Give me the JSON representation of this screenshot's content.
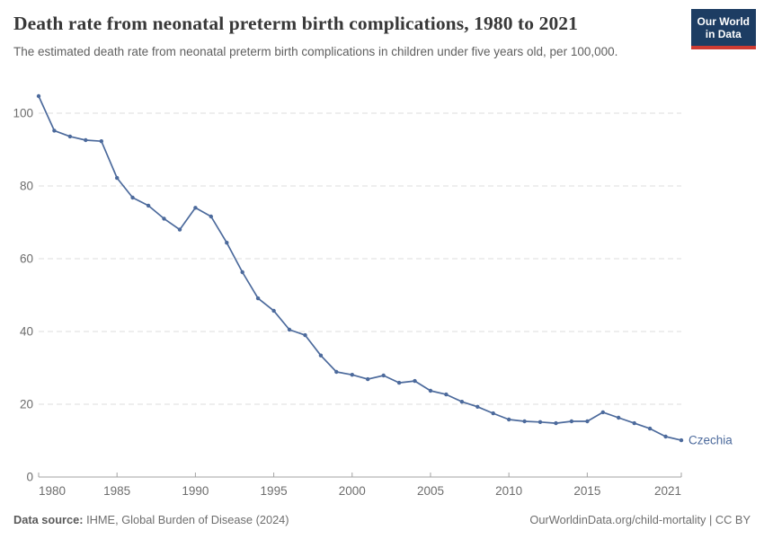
{
  "header": {
    "title": "Death rate from neonatal preterm birth complications, 1980 to 2021",
    "subtitle": "The estimated death rate from neonatal preterm birth complications in children under five years old, per 100,000.",
    "logo_line1": "Our World",
    "logo_line2": "in Data"
  },
  "colors": {
    "line": "#4C6A9C",
    "entity_label": "#4C6A9C",
    "grid": "#dcdcdc",
    "axis": "#a3a3a3",
    "tick_label": "#6d6d6d",
    "logo_bg": "#1d3d63",
    "logo_red": "#cf3b32"
  },
  "chart_data": {
    "type": "line",
    "title": "Death rate from neonatal preterm birth complications, 1980 to 2021",
    "xlabel": "",
    "ylabel": "",
    "entity_label": "Czechia",
    "xlim": [
      1980,
      2021
    ],
    "ylim": [
      0,
      107
    ],
    "grid": "horizontal-dashed",
    "legend_position": "end-of-line-label",
    "xticks": [
      1980,
      1985,
      1990,
      1995,
      2000,
      2005,
      2010,
      2015,
      2021
    ],
    "yticks": [
      0,
      20,
      40,
      60,
      80,
      100
    ],
    "x": [
      1980,
      1981,
      1982,
      1983,
      1984,
      1985,
      1986,
      1987,
      1988,
      1989,
      1990,
      1991,
      1992,
      1993,
      1994,
      1995,
      1996,
      1997,
      1998,
      1999,
      2000,
      2001,
      2002,
      2003,
      2004,
      2005,
      2006,
      2007,
      2008,
      2009,
      2010,
      2011,
      2012,
      2013,
      2014,
      2015,
      2016,
      2017,
      2018,
      2019,
      2020,
      2021
    ],
    "series": [
      {
        "name": "Czechia",
        "values": [
          104.7,
          95.2,
          93.6,
          92.6,
          92.3,
          82.2,
          76.8,
          74.6,
          71.0,
          68.0,
          74.0,
          71.6,
          64.4,
          56.3,
          49.1,
          45.7,
          40.5,
          39.0,
          33.4,
          28.9,
          28.1,
          26.9,
          27.9,
          25.9,
          26.4,
          23.7,
          22.7,
          20.7,
          19.3,
          17.5,
          15.8,
          15.3,
          15.1,
          14.8,
          15.3,
          15.3,
          17.8,
          16.3,
          14.8,
          13.3,
          11.1,
          10.1
        ]
      }
    ]
  },
  "footer": {
    "source_label": "Data source:",
    "source_value": " IHME, Global Burden of Disease (2024)",
    "credit": "OurWorldinData.org/child-mortality | CC BY"
  }
}
